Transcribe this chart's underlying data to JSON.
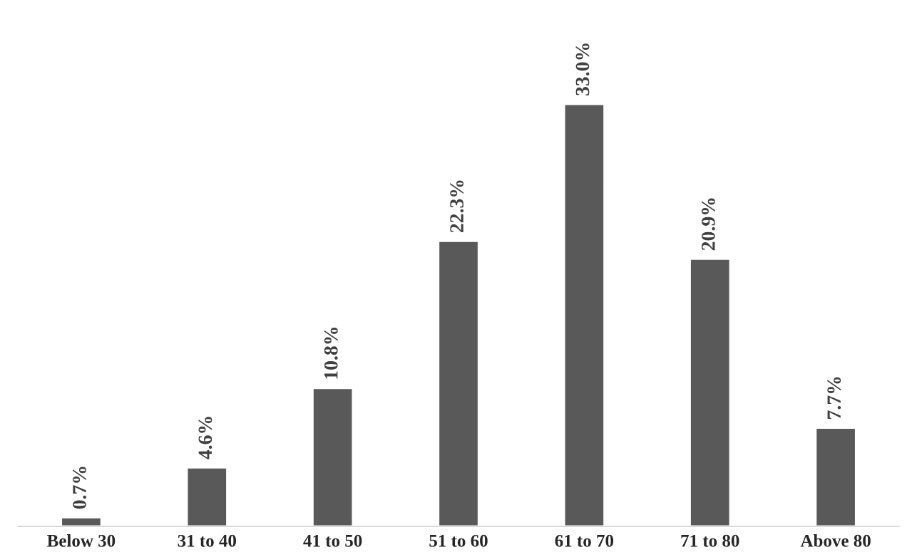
{
  "chart_data": {
    "type": "bar",
    "categories": [
      "Below 30",
      "31 to 40",
      "41 to 50",
      "51 to 60",
      "61 to 70",
      "71 to 80",
      "Above 80"
    ],
    "values": [
      0.7,
      4.6,
      10.8,
      22.3,
      33.0,
      20.9,
      7.7
    ],
    "value_labels": [
      "0.7%",
      "4.6%",
      "10.8%",
      "22.3%",
      "33.0%",
      "20.9%",
      "7.7%"
    ],
    "color": "#595959",
    "grid": false,
    "legend": false
  }
}
